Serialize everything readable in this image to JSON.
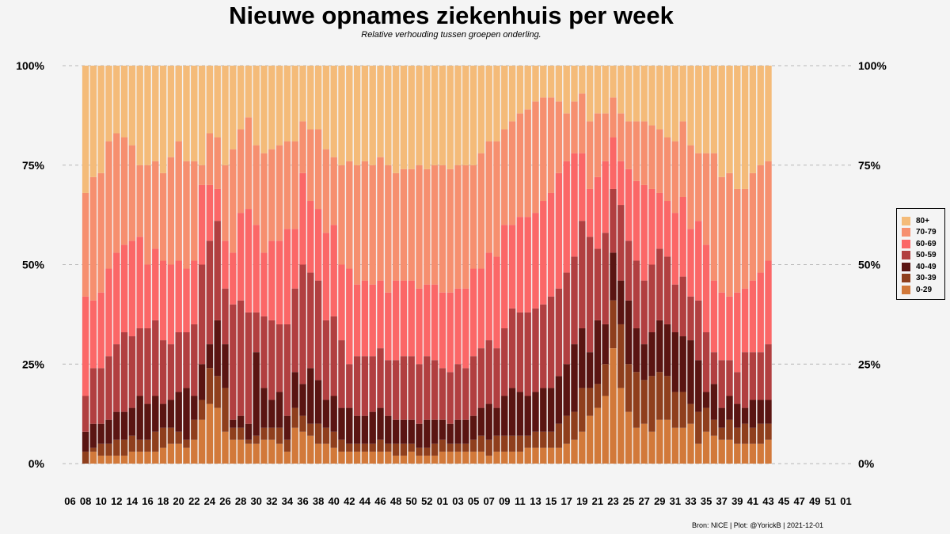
{
  "chart_data": {
    "type": "bar",
    "stacked": true,
    "normalized": true,
    "title": "Nieuwe opnames ziekenhuis per week",
    "subtitle": "Relative verhouding tussen groepen onderling.",
    "xlabel": "",
    "ylabel": "",
    "ylim": [
      0,
      100
    ],
    "y_ticks": [
      "0%",
      "25%",
      "50%",
      "75%",
      "100%"
    ],
    "x_tick_labels": [
      "06",
      "08",
      "10",
      "12",
      "14",
      "16",
      "18",
      "20",
      "22",
      "24",
      "26",
      "28",
      "30",
      "32",
      "34",
      "36",
      "38",
      "40",
      "42",
      "44",
      "46",
      "48",
      "50",
      "52",
      "01",
      "03",
      "05",
      "07",
      "09",
      "11",
      "13",
      "15",
      "17",
      "19",
      "21",
      "23",
      "25",
      "27",
      "29",
      "31",
      "33",
      "35",
      "37",
      "39",
      "41",
      "43",
      "45",
      "47",
      "49",
      "51",
      "01"
    ],
    "x_start_index": 2,
    "grid": "horizontal dashed",
    "legend_position": "right",
    "series_order_bottom_to_top": [
      "0-29",
      "30-39",
      "40-49",
      "50-59",
      "60-69",
      "70-79",
      "80+"
    ],
    "legend": [
      "80+",
      "70-79",
      "60-69",
      "50-59",
      "40-49",
      "30-39",
      "0-29"
    ],
    "colors": {
      "0-29": "#d2793a",
      "30-39": "#8f3f1d",
      "40-49": "#5a1512",
      "50-59": "#b13f40",
      "60-69": "#fb6767",
      "70-79": "#f68f6f",
      "80+": "#f4bb79"
    },
    "cumulative_boundaries": [
      [
        0,
        3,
        8,
        17,
        42,
        68
      ],
      [
        3,
        4,
        10,
        24,
        41,
        72
      ],
      [
        2,
        5,
        10,
        24,
        43,
        73
      ],
      [
        2,
        5,
        11,
        27,
        49,
        81
      ],
      [
        2,
        6,
        13,
        30,
        53,
        83
      ],
      [
        2,
        6,
        13,
        33,
        55,
        82
      ],
      [
        3,
        7,
        14,
        32,
        56,
        80
      ],
      [
        3,
        6,
        17,
        34,
        57,
        75
      ],
      [
        3,
        6,
        15,
        34,
        50,
        75
      ],
      [
        3,
        8,
        17,
        36,
        54,
        76
      ],
      [
        4,
        9,
        15,
        31,
        51,
        73
      ],
      [
        5,
        9,
        16,
        30,
        50,
        77
      ],
      [
        5,
        8,
        18,
        33,
        51,
        81
      ],
      [
        4,
        6,
        19,
        33,
        49,
        76
      ],
      [
        6,
        11,
        17,
        35,
        51,
        76
      ],
      [
        11,
        16,
        25,
        50,
        70,
        75
      ],
      [
        15,
        24,
        30,
        56,
        70,
        83
      ],
      [
        14,
        22,
        36,
        61,
        69,
        82
      ],
      [
        8,
        19,
        30,
        44,
        56,
        75
      ],
      [
        6,
        9,
        11,
        40,
        53,
        79
      ],
      [
        6,
        9,
        12,
        41,
        63,
        84
      ],
      [
        5,
        6,
        10,
        38,
        64,
        87
      ],
      [
        5,
        7,
        28,
        38,
        60,
        80
      ],
      [
        6,
        9,
        19,
        37,
        53,
        78
      ],
      [
        6,
        9,
        16,
        36,
        56,
        79
      ],
      [
        5,
        9,
        18,
        35,
        56,
        80
      ],
      [
        3,
        6,
        12,
        35,
        59,
        81
      ],
      [
        9,
        14,
        23,
        44,
        59,
        81
      ],
      [
        8,
        12,
        20,
        50,
        73,
        86
      ],
      [
        7,
        10,
        24,
        48,
        66,
        84
      ],
      [
        5,
        10,
        21,
        46,
        64,
        84
      ],
      [
        5,
        9,
        16,
        36,
        58,
        79
      ],
      [
        4,
        8,
        17,
        37,
        60,
        77
      ],
      [
        3,
        6,
        14,
        31,
        50,
        75
      ],
      [
        3,
        5,
        14,
        25,
        49,
        76
      ],
      [
        3,
        5,
        12,
        27,
        45,
        75
      ],
      [
        3,
        5,
        12,
        27,
        46,
        76
      ],
      [
        3,
        5,
        13,
        27,
        45,
        75
      ],
      [
        3,
        6,
        14,
        29,
        46,
        77
      ],
      [
        3,
        5,
        12,
        26,
        43,
        75
      ],
      [
        2,
        5,
        11,
        26,
        46,
        73
      ],
      [
        2,
        5,
        11,
        27,
        46,
        74
      ],
      [
        3,
        5,
        11,
        27,
        46,
        74
      ],
      [
        2,
        4,
        10,
        25,
        44,
        75
      ],
      [
        2,
        4,
        11,
        27,
        45,
        74
      ],
      [
        2,
        5,
        11,
        26,
        45,
        75
      ],
      [
        3,
        6,
        11,
        24,
        43,
        75
      ],
      [
        3,
        5,
        10,
        23,
        43,
        74
      ],
      [
        3,
        5,
        11,
        25,
        44,
        75
      ],
      [
        3,
        5,
        11,
        24,
        44,
        75
      ],
      [
        3,
        6,
        12,
        27,
        49,
        75
      ],
      [
        3,
        7,
        14,
        29,
        49,
        78
      ],
      [
        2,
        6,
        15,
        31,
        53,
        81
      ],
      [
        3,
        7,
        14,
        29,
        52,
        81
      ],
      [
        3,
        7,
        17,
        34,
        60,
        84
      ],
      [
        3,
        7,
        19,
        39,
        60,
        86
      ],
      [
        3,
        7,
        18,
        38,
        62,
        88
      ],
      [
        4,
        7,
        17,
        38,
        62,
        89
      ],
      [
        4,
        8,
        18,
        39,
        63,
        91
      ],
      [
        4,
        8,
        19,
        40,
        66,
        92
      ],
      [
        4,
        8,
        19,
        42,
        68,
        92
      ],
      [
        4,
        10,
        22,
        44,
        73,
        91
      ],
      [
        5,
        12,
        25,
        48,
        76,
        88
      ],
      [
        6,
        13,
        30,
        52,
        78,
        91
      ],
      [
        8,
        19,
        34,
        61,
        78,
        93
      ],
      [
        12,
        19,
        28,
        57,
        69,
        86
      ],
      [
        14,
        20,
        36,
        54,
        72,
        88
      ],
      [
        17,
        25,
        35,
        58,
        76,
        88
      ],
      [
        29,
        41,
        53,
        69,
        82,
        92
      ],
      [
        19,
        35,
        46,
        65,
        76,
        88
      ],
      [
        13,
        25,
        41,
        56,
        74,
        86
      ],
      [
        9,
        23,
        34,
        51,
        71,
        86
      ],
      [
        10,
        21,
        30,
        46,
        70,
        86
      ],
      [
        8,
        22,
        33,
        50,
        69,
        85
      ],
      [
        11,
        23,
        36,
        54,
        68,
        84
      ],
      [
        11,
        22,
        35,
        52,
        66,
        82
      ],
      [
        9,
        18,
        33,
        45,
        63,
        81
      ],
      [
        9,
        18,
        32,
        47,
        67,
        86
      ],
      [
        10,
        15,
        31,
        42,
        59,
        80
      ],
      [
        5,
        13,
        26,
        41,
        61,
        78
      ],
      [
        8,
        14,
        18,
        33,
        55,
        78
      ],
      [
        7,
        11,
        20,
        28,
        46,
        78
      ],
      [
        6,
        9,
        14,
        26,
        43,
        72
      ],
      [
        6,
        11,
        17,
        26,
        42,
        73
      ],
      [
        5,
        9,
        15,
        23,
        43,
        69
      ],
      [
        5,
        10,
        14,
        28,
        44,
        69
      ],
      [
        5,
        9,
        16,
        28,
        46,
        73
      ],
      [
        5,
        10,
        16,
        28,
        48,
        75
      ],
      [
        6,
        10,
        16,
        30,
        51,
        76
      ]
    ]
  },
  "legend_labels": [
    "80+",
    "70-79",
    "60-69",
    "50-59",
    "40-49",
    "30-39",
    "0-29"
  ],
  "caption": "Bron: NICE | Plot: @YorickB |  2021-12-01"
}
